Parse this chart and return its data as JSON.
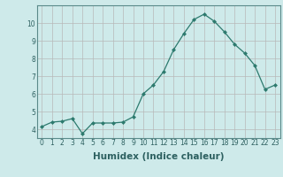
{
  "x": [
    0,
    1,
    2,
    3,
    4,
    5,
    6,
    7,
    8,
    9,
    10,
    11,
    12,
    13,
    14,
    15,
    16,
    17,
    18,
    19,
    20,
    21,
    22,
    23
  ],
  "y": [
    4.15,
    4.4,
    4.45,
    4.6,
    3.75,
    4.35,
    4.35,
    4.35,
    4.4,
    4.7,
    6.0,
    6.5,
    7.25,
    8.5,
    9.4,
    10.2,
    10.5,
    10.1,
    9.5,
    8.8,
    8.3,
    7.6,
    6.25,
    6.5
  ],
  "line_color": "#2d7a6e",
  "marker": "D",
  "marker_size": 2.0,
  "bg_color": "#ceeaea",
  "grid_color_major": "#b8b8b8",
  "grid_color_minor": "#d9d9d9",
  "xlabel": "Humidex (Indice chaleur)",
  "xlim": [
    -0.5,
    23.5
  ],
  "ylim": [
    3.5,
    11.0
  ],
  "yticks": [
    4,
    5,
    6,
    7,
    8,
    9,
    10
  ],
  "xticks": [
    0,
    1,
    2,
    3,
    4,
    5,
    6,
    7,
    8,
    9,
    10,
    11,
    12,
    13,
    14,
    15,
    16,
    17,
    18,
    19,
    20,
    21,
    22,
    23
  ],
  "tick_label_fontsize": 5.5,
  "xlabel_fontsize": 7.5,
  "axis_bg": "#ceeaea",
  "figure_bg": "#ceeaea"
}
